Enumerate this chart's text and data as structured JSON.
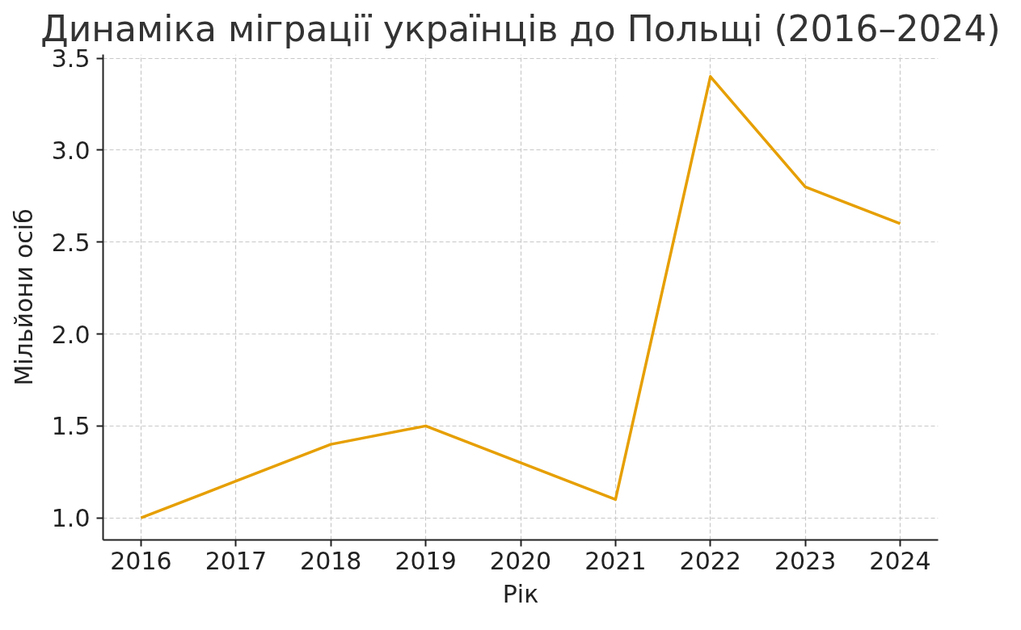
{
  "chart_data": {
    "type": "line",
    "title": "Динаміка міграції українців до Польщі (2016–2024)",
    "xlabel": "Рік",
    "ylabel": "Мільйони осіб",
    "x": [
      2016,
      2017,
      2018,
      2019,
      2020,
      2021,
      2022,
      2023,
      2024
    ],
    "series": [
      {
        "color": "#e69f00",
        "values": [
          1.0,
          1.2,
          1.4,
          1.5,
          1.3,
          1.1,
          3.4,
          2.8,
          2.6
        ]
      }
    ],
    "xlim": [
      2015.6,
      2024.4
    ],
    "ylim": [
      0.88,
      3.52
    ],
    "xticks": [
      2016,
      2017,
      2018,
      2019,
      2020,
      2021,
      2022,
      2023,
      2024
    ],
    "yticks": [
      {
        "value": 1.0,
        "label": "1.0"
      },
      {
        "value": 1.5,
        "label": "1.5"
      },
      {
        "value": 2.0,
        "label": "2.0"
      },
      {
        "value": 2.5,
        "label": "2.5"
      },
      {
        "value": 3.0,
        "label": "3.0"
      },
      {
        "value": 3.5,
        "label": "3.5"
      }
    ],
    "grid": true,
    "line_style": "solid"
  }
}
